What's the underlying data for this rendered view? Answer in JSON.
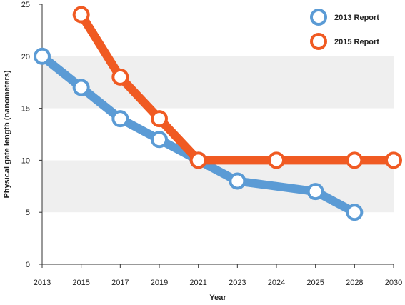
{
  "chart_data": {
    "type": "line",
    "categories": [
      "2013",
      "2015",
      "2017",
      "2019",
      "2021",
      "2023",
      "2024",
      "2025",
      "2028",
      "2030"
    ],
    "xlabel": "Year",
    "ylabel": "Physical gate length (nanometers)",
    "ylim": [
      0,
      25
    ],
    "yticks": [
      0,
      5,
      10,
      15,
      20,
      25
    ],
    "grid": "alternating horizontal bands",
    "legend_position": "top-right",
    "series": [
      {
        "name": "2013 Report",
        "color": "#5b9bd5",
        "points": [
          {
            "x": "2013",
            "y": 20
          },
          {
            "x": "2015",
            "y": 17
          },
          {
            "x": "2017",
            "y": 14
          },
          {
            "x": "2019",
            "y": 12
          },
          {
            "x": "2021",
            "y": 10
          },
          {
            "x": "2023",
            "y": 8
          },
          {
            "x": "2025",
            "y": 7
          },
          {
            "x": "2028",
            "y": 5
          }
        ]
      },
      {
        "name": "2015 Report",
        "color": "#f05a22",
        "points": [
          {
            "x": "2015",
            "y": 24
          },
          {
            "x": "2017",
            "y": 18
          },
          {
            "x": "2019",
            "y": 14
          },
          {
            "x": "2021",
            "y": 10
          },
          {
            "x": "2024",
            "y": 10
          },
          {
            "x": "2028",
            "y": 10
          },
          {
            "x": "2030",
            "y": 10
          }
        ]
      }
    ]
  }
}
